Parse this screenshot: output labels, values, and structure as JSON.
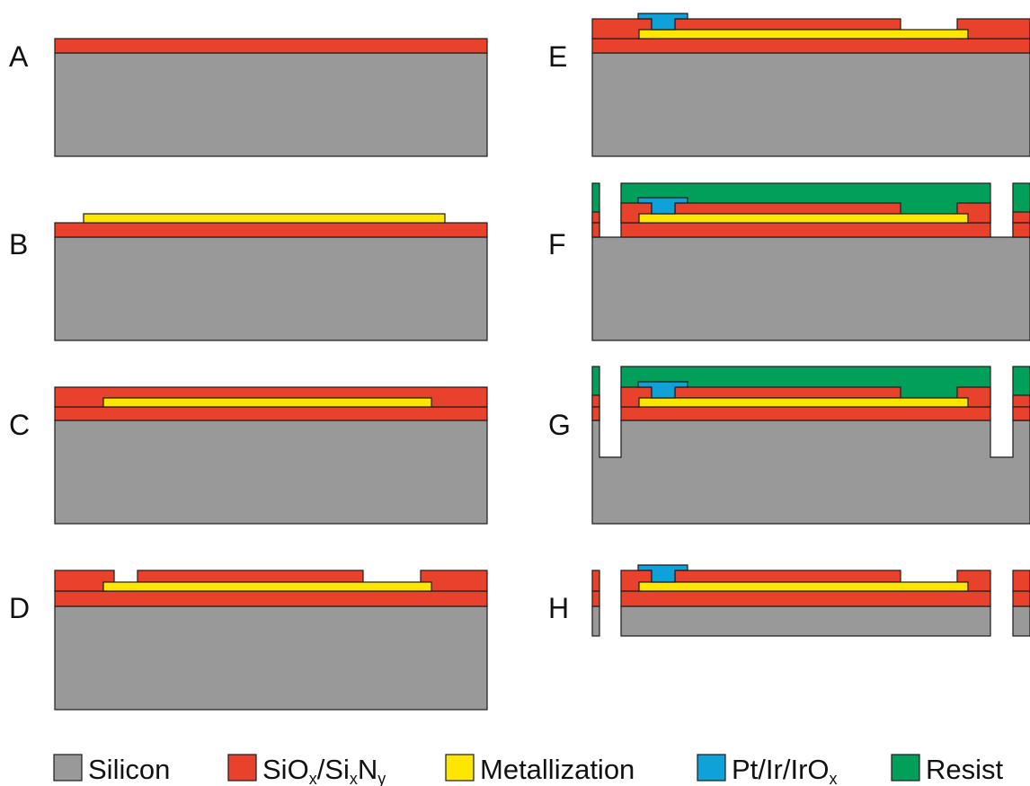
{
  "colors": {
    "silicon": "#999999",
    "oxide": "#e8412c",
    "metal": "#ffe600",
    "electrode": "#0ea2d8",
    "resist": "#00a05a",
    "outline": "#1a1a1a"
  },
  "steps": {
    "A": "A",
    "B": "B",
    "C": "C",
    "D": "D",
    "E": "E",
    "F": "F",
    "G": "G",
    "H": "H"
  },
  "legend": {
    "silicon": "Silicon",
    "oxide_pre": "SiO",
    "oxide_sub1": "x",
    "oxide_mid": "/Si",
    "oxide_sub2": "x",
    "oxide_mid2": "N",
    "oxide_sub3": "y",
    "metal": "Metallization",
    "electrode_pre": "Pt/Ir/IrO",
    "electrode_sub": "x",
    "resist": "Resist"
  }
}
